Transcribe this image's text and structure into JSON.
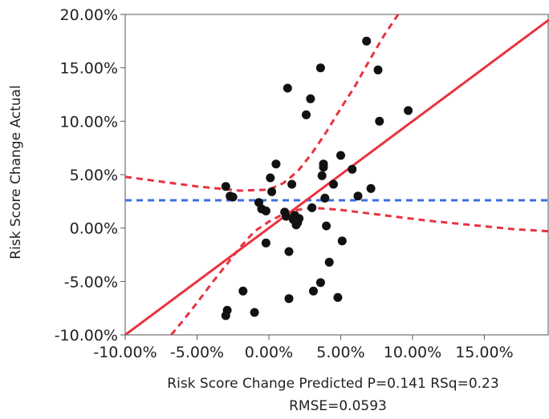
{
  "chart_data": {
    "type": "scatter",
    "xlabel": "Risk Score Change Predicted P=0.141 RSq=0.23",
    "xlabel_line2": "RMSE=0.0593",
    "ylabel": "Risk Score Change Actual",
    "xlim": [
      -0.1,
      0.195
    ],
    "ylim": [
      -0.1,
      0.2
    ],
    "x_ticks": [
      -0.1,
      -0.05,
      0.0,
      0.05,
      0.1,
      0.15
    ],
    "x_tick_labels": [
      "-10.00%",
      "-5.00%",
      "0.00%",
      "5.00%",
      "10.00%",
      "15.00%"
    ],
    "y_ticks": [
      -0.1,
      -0.05,
      0.0,
      0.05,
      0.1,
      0.15,
      0.2
    ],
    "y_tick_labels": [
      "-10.00%",
      "-5.00%",
      "0.00%",
      "5.00%",
      "10.00%",
      "15.00%",
      "20.00%"
    ],
    "grid": false,
    "mean_line": {
      "y": 0.026,
      "color": "#3b6fe0"
    },
    "fit_line": {
      "slope": 1.0,
      "intercept": 0.0,
      "color": "#e8333f"
    },
    "confidence_band": {
      "color": "#e8333f",
      "upper": [
        [
          -0.1,
          0.048
        ],
        [
          -0.05,
          0.039
        ],
        [
          -0.02,
          0.035
        ],
        [
          0.0,
          0.036
        ],
        [
          0.01,
          0.042
        ],
        [
          0.02,
          0.053
        ],
        [
          0.03,
          0.07
        ],
        [
          0.04,
          0.09
        ],
        [
          0.05,
          0.112
        ],
        [
          0.06,
          0.133
        ],
        [
          0.07,
          0.157
        ],
        [
          0.08,
          0.18
        ],
        [
          0.09,
          0.2
        ]
      ],
      "lower": [
        [
          -0.068,
          -0.1
        ],
        [
          -0.06,
          -0.087
        ],
        [
          -0.05,
          -0.07
        ],
        [
          -0.04,
          -0.052
        ],
        [
          -0.03,
          -0.035
        ],
        [
          -0.02,
          -0.018
        ],
        [
          -0.01,
          -0.003
        ],
        [
          0.0,
          0.006
        ],
        [
          0.01,
          0.013
        ],
        [
          0.02,
          0.017
        ],
        [
          0.03,
          0.019
        ],
        [
          0.05,
          0.017
        ],
        [
          0.08,
          0.012
        ],
        [
          0.11,
          0.007
        ],
        [
          0.14,
          0.003
        ],
        [
          0.17,
          -0.001
        ],
        [
          0.195,
          -0.003
        ]
      ]
    },
    "points_color": "#111111",
    "points": [
      [
        -0.03,
        0.039
      ],
      [
        -0.027,
        0.03
      ],
      [
        -0.025,
        0.029
      ],
      [
        -0.029,
        -0.077
      ],
      [
        -0.03,
        -0.082
      ],
      [
        -0.018,
        -0.059
      ],
      [
        -0.01,
        -0.079
      ],
      [
        -0.007,
        0.024
      ],
      [
        -0.005,
        0.018
      ],
      [
        -0.002,
        0.016
      ],
      [
        -0.002,
        -0.014
      ],
      [
        0.001,
        0.047
      ],
      [
        0.002,
        0.034
      ],
      [
        0.005,
        0.06
      ],
      [
        0.011,
        0.015
      ],
      [
        0.012,
        0.011
      ],
      [
        0.013,
        0.131
      ],
      [
        0.014,
        -0.022
      ],
      [
        0.014,
        -0.066
      ],
      [
        0.016,
        0.041
      ],
      [
        0.017,
        0.008
      ],
      [
        0.018,
        0.012
      ],
      [
        0.019,
        0.003
      ],
      [
        0.02,
        0.005
      ],
      [
        0.021,
        0.009
      ],
      [
        0.026,
        0.106
      ],
      [
        0.029,
        0.121
      ],
      [
        0.03,
        0.019
      ],
      [
        0.031,
        -0.059
      ],
      [
        0.036,
        0.15
      ],
      [
        0.036,
        -0.051
      ],
      [
        0.037,
        0.049
      ],
      [
        0.038,
        0.057
      ],
      [
        0.038,
        0.06
      ],
      [
        0.039,
        0.028
      ],
      [
        0.04,
        0.002
      ],
      [
        0.042,
        -0.032
      ],
      [
        0.045,
        0.041
      ],
      [
        0.048,
        -0.065
      ],
      [
        0.05,
        0.068
      ],
      [
        0.051,
        -0.012
      ],
      [
        0.058,
        0.055
      ],
      [
        0.062,
        0.03
      ],
      [
        0.068,
        0.175
      ],
      [
        0.071,
        0.037
      ],
      [
        0.076,
        0.148
      ],
      [
        0.077,
        0.1
      ],
      [
        0.097,
        0.11
      ]
    ]
  }
}
